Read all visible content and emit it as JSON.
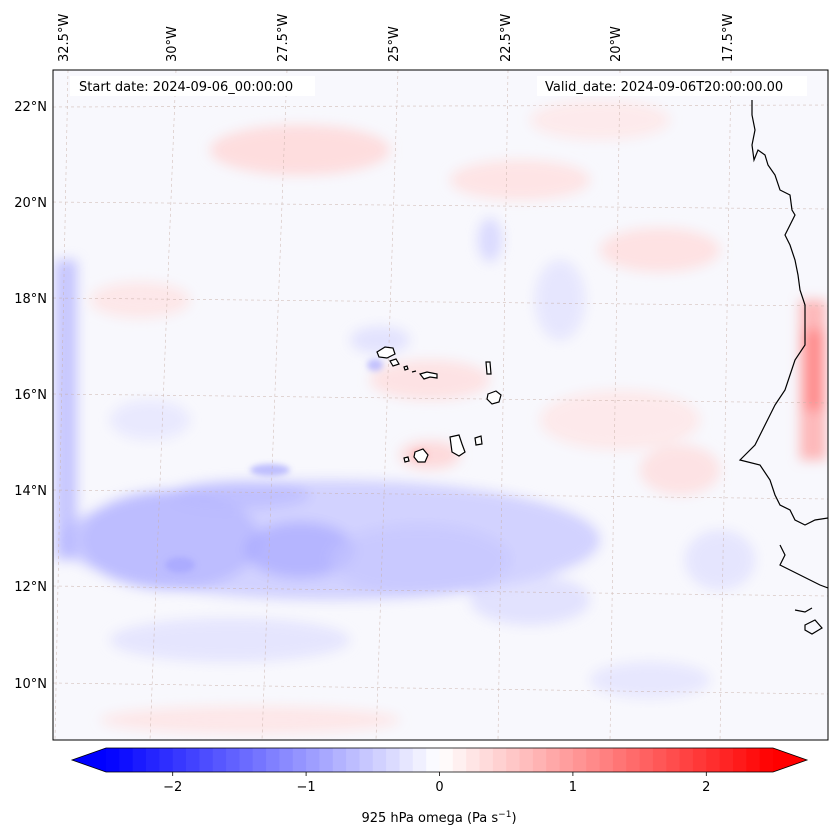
{
  "map": {
    "start_date_text": "Start date: 2024-09-06_00:00:00",
    "valid_date_text": "Valid_date: 2024-09-06T20:00:00.00",
    "lon_labels": [
      "32.5°W",
      "30°W",
      "27.5°W",
      "25°W",
      "22.5°W",
      "20°W",
      "17.5°W"
    ],
    "lat_labels": [
      "22°N",
      "20°N",
      "18°N",
      "16°N",
      "14°N",
      "12°N",
      "10°N"
    ],
    "field": "925 hPa omega",
    "gridlines": true,
    "coastline_color": "#000000"
  },
  "colorbar": {
    "label": "925 hPa omega (Pa s",
    "label_sup": "−1",
    "label_close": ")",
    "ticks": [
      "−2",
      "−1",
      "0",
      "1",
      "2"
    ],
    "tick_values": [
      -2,
      -1,
      0,
      1,
      2
    ],
    "range": [
      -2.5,
      2.5
    ],
    "extend": "both",
    "cmap": "bwr",
    "color_min": "#0000ff",
    "color_mid": "#ffffff",
    "color_max": "#ff0000"
  }
}
